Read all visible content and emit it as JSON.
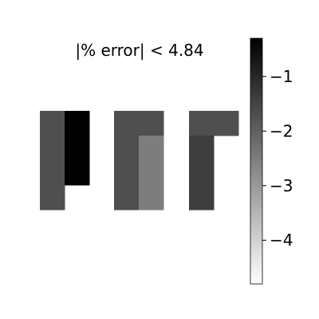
{
  "chart_data": {
    "type": "heatmap",
    "title": "|% error| < 4.84",
    "colormap": "gray_r",
    "color_range": [
      -4.8,
      -0.3
    ],
    "colorbar": {
      "ticks": [
        -1,
        -2,
        -3,
        -4
      ],
      "tick_labels": [
        "−1",
        "−2",
        "−3",
        "−4"
      ]
    },
    "panels": [
      {
        "name": "panel-1",
        "grid": [
          [
            -1.7,
            -0.3
          ],
          [
            -1.7,
            -0.3
          ],
          [
            -1.7,
            -0.3
          ],
          [
            -1.7,
            null
          ]
        ]
      },
      {
        "name": "panel-2",
        "grid": [
          [
            -1.7,
            -1.7
          ],
          [
            -1.7,
            -2.5
          ],
          [
            -1.7,
            -2.5
          ],
          [
            -1.7,
            -2.5
          ]
        ]
      },
      {
        "name": "panel-3",
        "grid": [
          [
            -1.7,
            -1.7
          ],
          [
            -1.4,
            null
          ],
          [
            -1.4,
            null
          ],
          [
            -1.4,
            null
          ]
        ]
      }
    ]
  }
}
